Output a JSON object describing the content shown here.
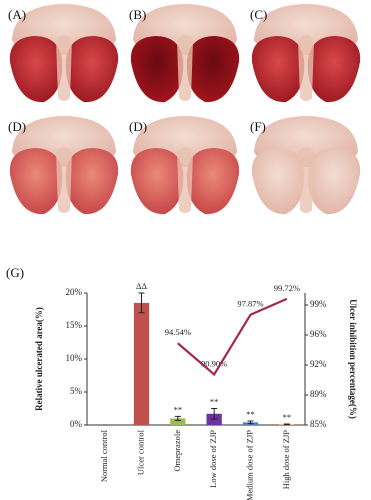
{
  "panels": [
    {
      "label": "(A)"
    },
    {
      "label": "(B)"
    },
    {
      "label": "(C)"
    },
    {
      "label": "(D)"
    },
    {
      "label": "(D)"
    },
    {
      "label": "(F)"
    }
  ],
  "chart_data": {
    "type": "bar",
    "label": "(G)",
    "categories": [
      "Normal control",
      "Ulcer control",
      "Omeprazole",
      "Low dose of ZJP",
      "Medium dose of ZJP",
      "High dose of ZJP"
    ],
    "ylabel": "Relative ulcerated area(%)",
    "y2label": "Ulcer inhibition percentage(%)",
    "ylim": [
      0,
      20
    ],
    "yticks": [
      {
        "value": 0,
        "label": "0%"
      },
      {
        "value": 5,
        "label": "5%"
      },
      {
        "value": 10,
        "label": "10%"
      },
      {
        "value": 15,
        "label": "15%"
      },
      {
        "value": 20,
        "label": "20%"
      }
    ],
    "y2lim": [
      85,
      100.4
    ],
    "y2ticks": [
      {
        "value": 85,
        "label": "85%"
      },
      {
        "value": 88.5,
        "label": "89%"
      },
      {
        "value": 92,
        "label": "92%"
      },
      {
        "value": 95.5,
        "label": "96%"
      },
      {
        "value": 99,
        "label": "99%"
      }
    ],
    "series": [
      {
        "values": [
          0,
          18.5,
          1.0,
          1.7,
          0.4,
          0.1
        ],
        "errors": [
          0,
          1.5,
          0.3,
          0.8,
          0.2,
          0.05
        ],
        "colors": [
          "#c0504d",
          "#c0504d",
          "#9bbb59",
          "#7030a0",
          "#4f81bd",
          "#f79646"
        ],
        "markers": [
          null,
          "ΔΔ",
          "**",
          "**",
          "**",
          "**"
        ]
      },
      {
        "type": "line",
        "axis": "y2",
        "color": "#a3284a",
        "values": [
          null,
          null,
          94.54,
          90.9,
          97.87,
          99.72
        ],
        "value_labels": [
          null,
          null,
          "94.54%",
          "90.90%",
          "97.87%",
          "99.72%"
        ]
      }
    ]
  }
}
